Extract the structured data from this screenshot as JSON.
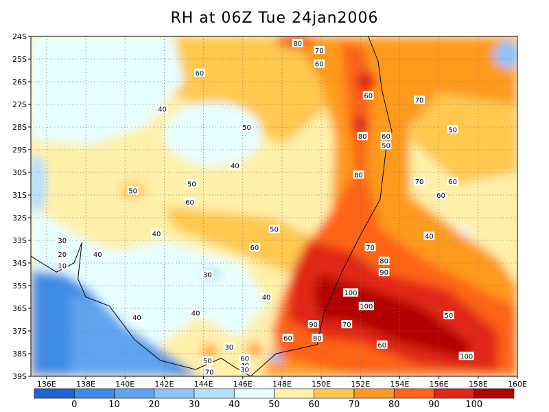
{
  "chart_data": {
    "type": "heatmap",
    "title": "RH at 06Z Tue 24jan2006",
    "xlabel": "",
    "ylabel": "",
    "x_ticks": [
      "136E",
      "138E",
      "140E",
      "142E",
      "144E",
      "146E",
      "148E",
      "150E",
      "152E",
      "154E",
      "156E",
      "158E",
      "160E"
    ],
    "y_ticks": [
      "24S",
      "25S",
      "26S",
      "27S",
      "28S",
      "29S",
      "30S",
      "31S",
      "32S",
      "33S",
      "34S",
      "35S",
      "36S",
      "37S",
      "38S",
      "39S"
    ],
    "xlim": [
      135.2,
      160
    ],
    "ylim": [
      -39,
      -24
    ],
    "grid": "dotted",
    "colorbar": {
      "colors": [
        "#1e64d2",
        "#3c8ce6",
        "#5fa5f0",
        "#8cc3fa",
        "#b4e1fa",
        "#e6ffff",
        "#fff0aa",
        "#ffc850",
        "#ff9a1e",
        "#ff6414",
        "#e12814",
        "#b40000"
      ],
      "boundaries": [
        "0",
        "10",
        "20",
        "30",
        "40",
        "50",
        "60",
        "70",
        "80",
        "90",
        "100"
      ]
    },
    "contour_labels": [
      {
        "lon": 148.8,
        "lat": -24.3,
        "text": "80"
      },
      {
        "lon": 149.9,
        "lat": -24.6,
        "text": "70"
      },
      {
        "lon": 149.9,
        "lat": -25.2,
        "text": "60"
      },
      {
        "lon": 143.8,
        "lat": -25.6,
        "text": "60"
      },
      {
        "lon": 152.4,
        "lat": -26.6,
        "text": "60"
      },
      {
        "lon": 155.0,
        "lat": -26.8,
        "text": "70"
      },
      {
        "lon": 141.9,
        "lat": -27.2,
        "text": "40"
      },
      {
        "lon": 146.2,
        "lat": -28.0,
        "text": "50"
      },
      {
        "lon": 156.7,
        "lat": -28.1,
        "text": "50"
      },
      {
        "lon": 152.1,
        "lat": -28.4,
        "text": "80"
      },
      {
        "lon": 153.3,
        "lat": -28.4,
        "text": "60"
      },
      {
        "lon": 153.3,
        "lat": -28.8,
        "text": "50"
      },
      {
        "lon": 145.6,
        "lat": -29.7,
        "text": "40"
      },
      {
        "lon": 151.9,
        "lat": -30.1,
        "text": "80"
      },
      {
        "lon": 155.0,
        "lat": -30.4,
        "text": "70"
      },
      {
        "lon": 156.7,
        "lat": -30.4,
        "text": "60"
      },
      {
        "lon": 140.4,
        "lat": -30.8,
        "text": "50"
      },
      {
        "lon": 143.4,
        "lat": -30.5,
        "text": "50"
      },
      {
        "lon": 156.1,
        "lat": -31.0,
        "text": "60"
      },
      {
        "lon": 143.3,
        "lat": -31.3,
        "text": "60"
      },
      {
        "lon": 147.6,
        "lat": -32.5,
        "text": "50"
      },
      {
        "lon": 141.6,
        "lat": -32.7,
        "text": "40"
      },
      {
        "lon": 155.5,
        "lat": -32.8,
        "text": "40"
      },
      {
        "lon": 136.8,
        "lat": -33.0,
        "text": "30"
      },
      {
        "lon": 146.6,
        "lat": -33.3,
        "text": "60"
      },
      {
        "lon": 152.5,
        "lat": -33.3,
        "text": "70"
      },
      {
        "lon": 136.8,
        "lat": -33.6,
        "text": "20"
      },
      {
        "lon": 138.6,
        "lat": -33.6,
        "text": "40"
      },
      {
        "lon": 153.2,
        "lat": -33.9,
        "text": "80"
      },
      {
        "lon": 136.8,
        "lat": -34.1,
        "text": "10"
      },
      {
        "lon": 153.2,
        "lat": -34.4,
        "text": "90"
      },
      {
        "lon": 144.2,
        "lat": -34.5,
        "text": "30"
      },
      {
        "lon": 151.5,
        "lat": -35.3,
        "text": "100"
      },
      {
        "lon": 147.2,
        "lat": -35.5,
        "text": "40"
      },
      {
        "lon": 152.3,
        "lat": -35.9,
        "text": "100"
      },
      {
        "lon": 143.6,
        "lat": -36.2,
        "text": "40"
      },
      {
        "lon": 140.6,
        "lat": -36.4,
        "text": "40"
      },
      {
        "lon": 156.5,
        "lat": -36.3,
        "text": "50"
      },
      {
        "lon": 149.6,
        "lat": -36.7,
        "text": "90"
      },
      {
        "lon": 151.3,
        "lat": -36.7,
        "text": "70"
      },
      {
        "lon": 148.3,
        "lat": -37.3,
        "text": "60"
      },
      {
        "lon": 149.8,
        "lat": -37.3,
        "text": "80"
      },
      {
        "lon": 153.1,
        "lat": -37.6,
        "text": "60"
      },
      {
        "lon": 145.3,
        "lat": -37.7,
        "text": "30"
      },
      {
        "lon": 157.4,
        "lat": -38.1,
        "text": "100"
      },
      {
        "lon": 146.1,
        "lat": -38.2,
        "text": "60"
      },
      {
        "lon": 144.2,
        "lat": -38.3,
        "text": "50"
      },
      {
        "lon": 146.1,
        "lat": -38.5,
        "text": "40"
      },
      {
        "lon": 146.1,
        "lat": -38.7,
        "text": "30"
      },
      {
        "lon": 144.3,
        "lat": -38.8,
        "text": "70"
      }
    ]
  }
}
